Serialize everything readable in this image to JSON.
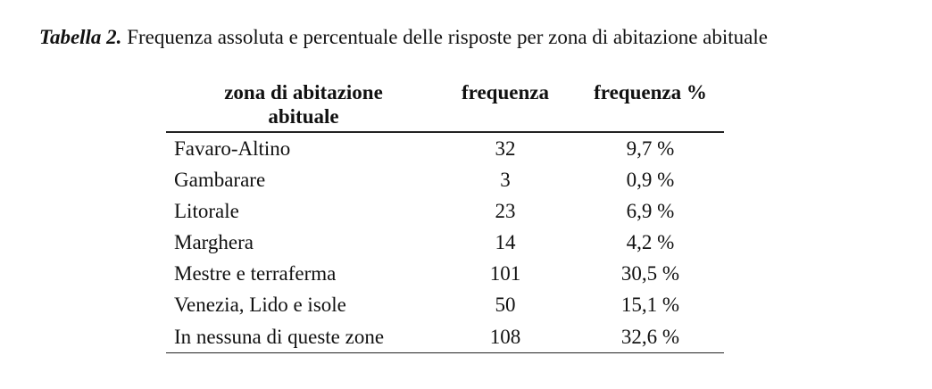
{
  "caption": {
    "label": "Tabella 2.",
    "text": " Frequenza assoluta e percentuale delle risposte per zona di abitazione abituale"
  },
  "table": {
    "headers": {
      "zone_line1": "zona di abitazione",
      "zone_line2": "abituale",
      "frequency": "frequenza",
      "percent": "frequenza %"
    },
    "rows": [
      {
        "zone": "Favaro-Altino",
        "frequency": "32",
        "percent": "9,7 %"
      },
      {
        "zone": "Gambarare",
        "frequency": "3",
        "percent": "0,9 %"
      },
      {
        "zone": "Litorale",
        "frequency": "23",
        "percent": "6,9 %"
      },
      {
        "zone": "Marghera",
        "frequency": "14",
        "percent": "4,2 %"
      },
      {
        "zone": "Mestre e terraferma",
        "frequency": "101",
        "percent": "30,5 %"
      },
      {
        "zone": "Venezia, Lido e isole",
        "frequency": "50",
        "percent": "15,1 %"
      },
      {
        "zone": "In nessuna di queste zone",
        "frequency": "108",
        "percent": "32,6 %"
      }
    ]
  }
}
